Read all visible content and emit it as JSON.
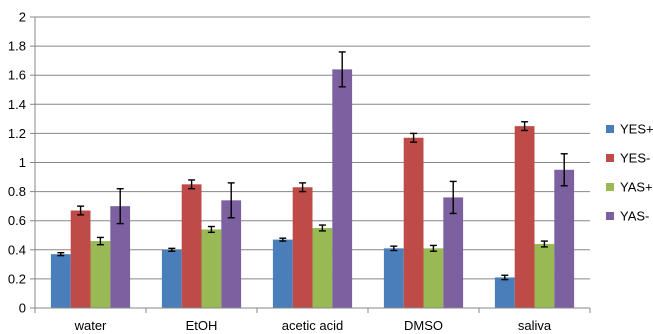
{
  "chart_data": {
    "type": "bar",
    "title": "",
    "xlabel": "",
    "ylabel": "",
    "categories": [
      "water",
      "EtOH",
      "acetic acid",
      "DMSO",
      "saliva"
    ],
    "ylim": [
      0,
      2
    ],
    "yticks": [
      0,
      0.2,
      0.4,
      0.6,
      0.8,
      1,
      1.2,
      1.4,
      1.6,
      1.8,
      2
    ],
    "ytick_labels": [
      "0",
      "0.2",
      "0.4",
      "0.6",
      "0.8",
      "1",
      "1.2",
      "1.4",
      "1.6",
      "1.8",
      "2"
    ],
    "grid": true,
    "legend_position": "right",
    "error_bars": true,
    "series": [
      {
        "name": "YES+",
        "color": "#4a7ebb",
        "values": [
          0.37,
          0.4,
          0.47,
          0.41,
          0.21
        ],
        "errors": [
          0.01,
          0.01,
          0.01,
          0.015,
          0.015
        ]
      },
      {
        "name": "YES-",
        "color": "#be4b48",
        "values": [
          0.67,
          0.85,
          0.83,
          1.17,
          1.25
        ],
        "errors": [
          0.03,
          0.03,
          0.03,
          0.03,
          0.03
        ]
      },
      {
        "name": "YAS+",
        "color": "#98b954",
        "values": [
          0.46,
          0.54,
          0.55,
          0.41,
          0.44
        ],
        "errors": [
          0.025,
          0.02,
          0.02,
          0.02,
          0.02
        ]
      },
      {
        "name": "YAS-",
        "color": "#7d60a0",
        "values": [
          0.7,
          0.74,
          1.64,
          0.76,
          0.95
        ],
        "errors": [
          0.12,
          0.12,
          0.12,
          0.11,
          0.11
        ]
      }
    ]
  }
}
